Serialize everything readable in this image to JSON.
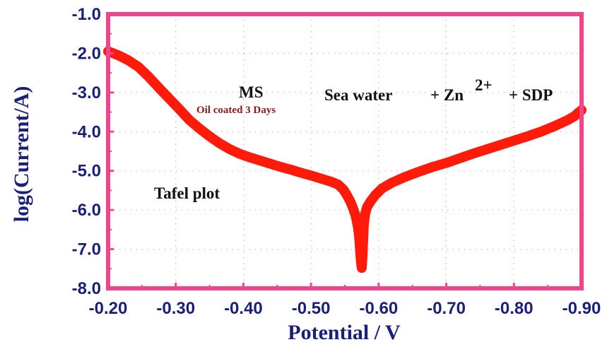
{
  "chart_data": {
    "type": "scatter",
    "xlabel": "Potential / V",
    "ylabel": "log(Current/A)",
    "xlim": [
      -0.2,
      -0.9
    ],
    "ylim": [
      -8.0,
      -1.0
    ],
    "x_ticks": [
      "-0.20",
      "-0.30",
      "-0.40",
      "-0.50",
      "-0.60",
      "-0.70",
      "-0.80",
      "-0.90"
    ],
    "y_ticks": [
      "-1.0",
      "-2.0",
      "-3.0",
      "-4.0",
      "-5.0",
      "-6.0",
      "-7.0",
      "-8.0"
    ],
    "grid": "dotted",
    "frame_color": "#f0448c",
    "series_color": "#ff1a0a",
    "axis_text_color": "#1a1f7a",
    "annotations": {
      "material": "MS",
      "coating": "Oil coated 3 Days",
      "medium": "Sea water",
      "additive1_prefix": "+ Zn",
      "additive1_sup": "2+",
      "additive2": "+ SDP",
      "plot_name": "Tafel plot"
    },
    "series": [
      {
        "points": [
          [
            -0.2,
            -1.95
          ],
          [
            -0.215,
            -2.05
          ],
          [
            -0.23,
            -2.18
          ],
          [
            -0.245,
            -2.35
          ],
          [
            -0.26,
            -2.6
          ],
          [
            -0.275,
            -2.88
          ],
          [
            -0.29,
            -3.15
          ],
          [
            -0.305,
            -3.42
          ],
          [
            -0.32,
            -3.7
          ],
          [
            -0.335,
            -3.92
          ],
          [
            -0.35,
            -4.12
          ],
          [
            -0.365,
            -4.3
          ],
          [
            -0.38,
            -4.45
          ],
          [
            -0.395,
            -4.57
          ],
          [
            -0.41,
            -4.66
          ],
          [
            -0.425,
            -4.74
          ],
          [
            -0.44,
            -4.82
          ],
          [
            -0.455,
            -4.9
          ],
          [
            -0.47,
            -4.97
          ],
          [
            -0.485,
            -5.05
          ],
          [
            -0.5,
            -5.12
          ],
          [
            -0.515,
            -5.2
          ],
          [
            -0.53,
            -5.28
          ],
          [
            -0.54,
            -5.35
          ],
          [
            -0.548,
            -5.48
          ],
          [
            -0.553,
            -5.62
          ],
          [
            -0.558,
            -5.78
          ],
          [
            -0.562,
            -5.95
          ],
          [
            -0.566,
            -6.15
          ],
          [
            -0.569,
            -6.4
          ],
          [
            -0.571,
            -6.65
          ],
          [
            -0.572,
            -6.9
          ],
          [
            -0.573,
            -7.15
          ],
          [
            -0.574,
            -7.35
          ],
          [
            -0.575,
            -7.48
          ],
          [
            -0.576,
            -7.2
          ],
          [
            -0.577,
            -6.8
          ],
          [
            -0.578,
            -6.4
          ],
          [
            -0.58,
            -6.1
          ],
          [
            -0.583,
            -5.92
          ],
          [
            -0.588,
            -5.78
          ],
          [
            -0.595,
            -5.62
          ],
          [
            -0.605,
            -5.45
          ],
          [
            -0.62,
            -5.3
          ],
          [
            -0.64,
            -5.15
          ],
          [
            -0.66,
            -5.02
          ],
          [
            -0.68,
            -4.9
          ],
          [
            -0.7,
            -4.8
          ],
          [
            -0.72,
            -4.68
          ],
          [
            -0.74,
            -4.56
          ],
          [
            -0.76,
            -4.45
          ],
          [
            -0.78,
            -4.34
          ],
          [
            -0.8,
            -4.23
          ],
          [
            -0.82,
            -4.12
          ],
          [
            -0.84,
            -4.0
          ],
          [
            -0.86,
            -3.86
          ],
          [
            -0.88,
            -3.7
          ],
          [
            -0.89,
            -3.6
          ],
          [
            -0.895,
            -3.52
          ],
          [
            -0.9,
            -3.45
          ]
        ]
      }
    ]
  }
}
